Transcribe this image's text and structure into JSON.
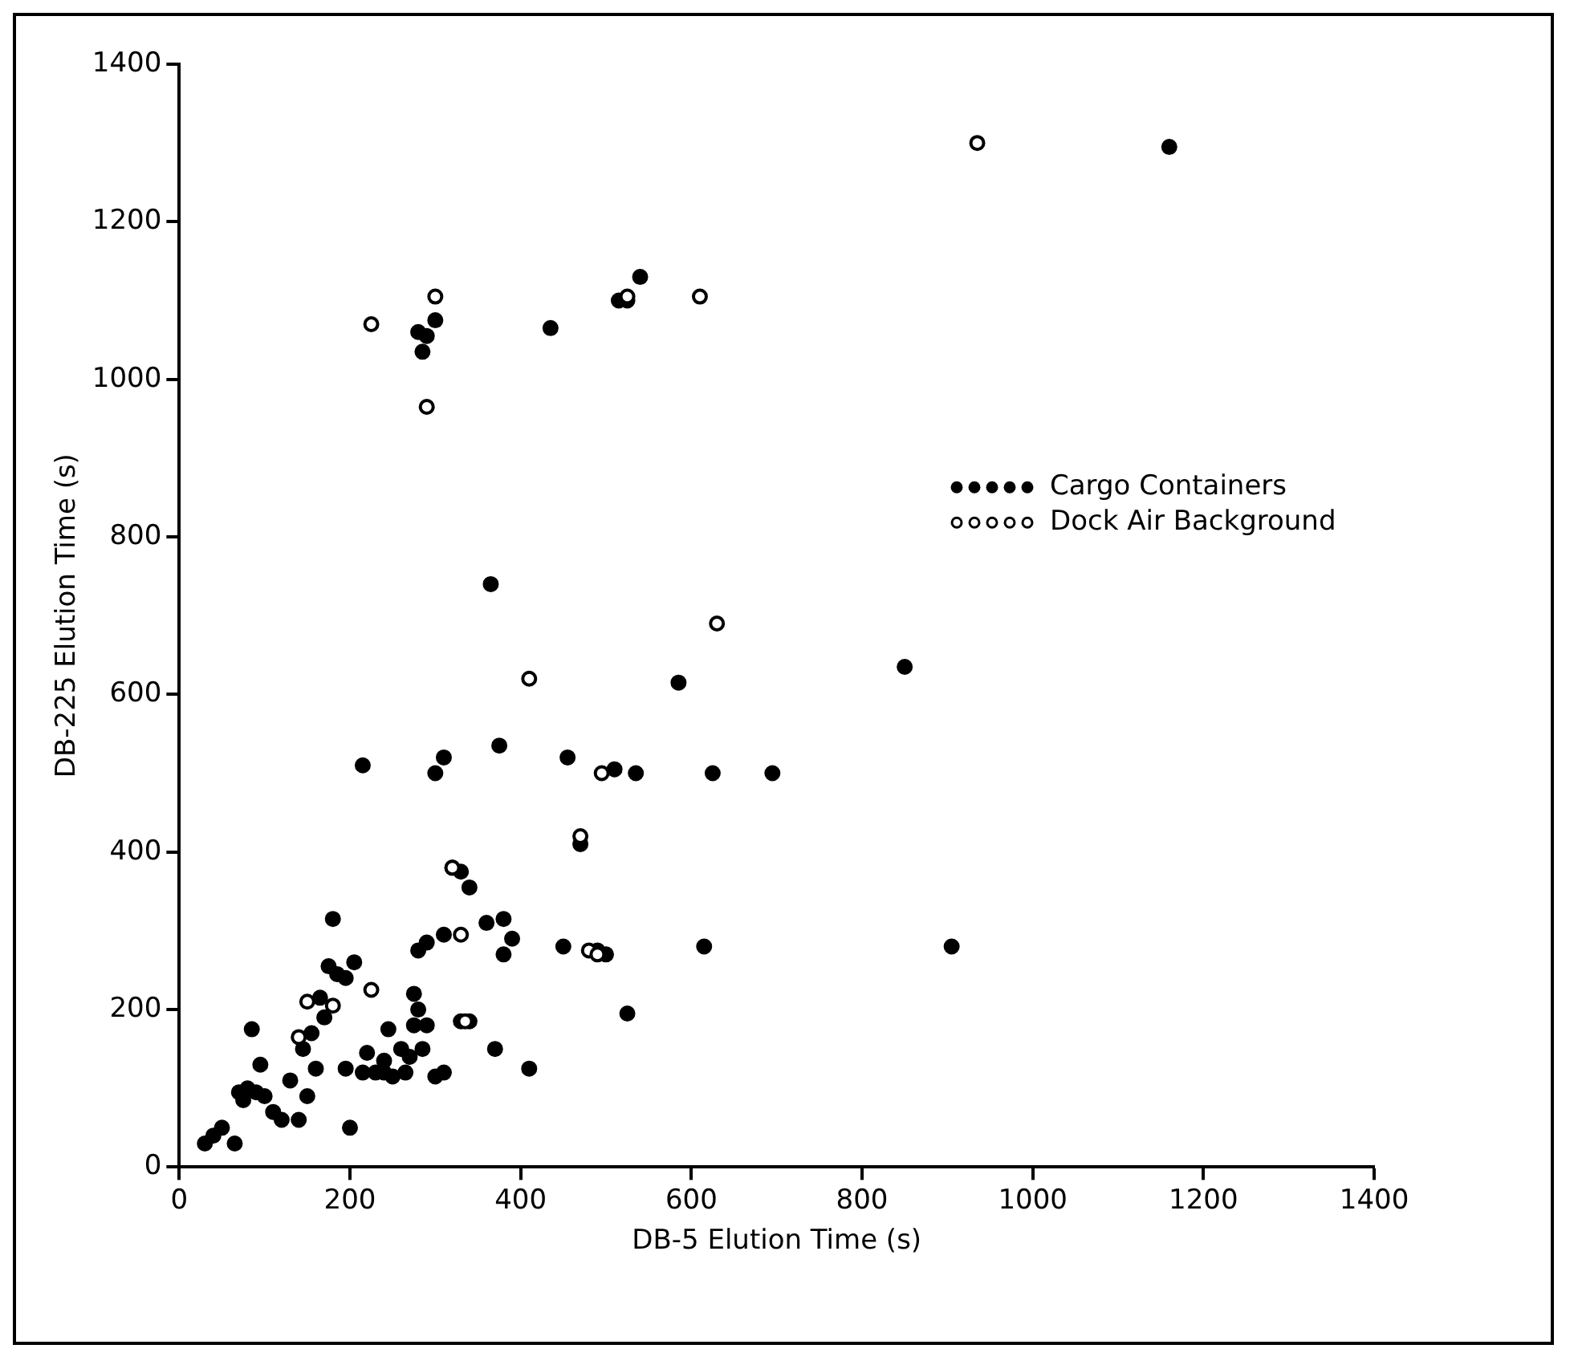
{
  "chart_data": {
    "type": "scatter",
    "xlabel": "DB-5 Elution Time (s)",
    "ylabel": "DB-225 Elution Time (s)",
    "xlim": [
      0,
      1400
    ],
    "xticks": [
      0,
      200,
      400,
      600,
      800,
      1000,
      1200,
      1400
    ],
    "ylim": [
      0,
      1400
    ],
    "yticks": [
      0,
      200,
      400,
      600,
      800,
      1000,
      1200,
      1400
    ],
    "grid": false,
    "legend": "right",
    "marker": "circle",
    "series": [
      {
        "name": "Cargo Containers",
        "color": "#000000",
        "x": [
          280,
          290,
          285,
          300,
          435,
          515,
          525,
          540,
          1160,
          365,
          850,
          585,
          375,
          215,
          310,
          300,
          455,
          510,
          535,
          625,
          695,
          615,
          905,
          450,
          490,
          500,
          525,
          470,
          410,
          360,
          380,
          390,
          380,
          340,
          330,
          320,
          290,
          280,
          310,
          370,
          330,
          340,
          310,
          300,
          275,
          280,
          275,
          285,
          260,
          245,
          240,
          250,
          230,
          215,
          220,
          205,
          180,
          175,
          185,
          195,
          165,
          170,
          155,
          145,
          140,
          130,
          150,
          120,
          100,
          95,
          85,
          80,
          75,
          65,
          50,
          40,
          30,
          110,
          90,
          70,
          200,
          195,
          160,
          240,
          265,
          270,
          290
        ],
        "values": [
          1060,
          1055,
          1035,
          1075,
          1065,
          1100,
          1100,
          1130,
          1295,
          740,
          635,
          615,
          535,
          510,
          520,
          500,
          520,
          505,
          500,
          500,
          500,
          280,
          280,
          280,
          275,
          270,
          195,
          410,
          125,
          310,
          315,
          290,
          270,
          355,
          375,
          380,
          285,
          275,
          295,
          150,
          185,
          185,
          120,
          115,
          220,
          200,
          180,
          150,
          150,
          175,
          135,
          115,
          120,
          120,
          145,
          260,
          315,
          255,
          245,
          240,
          215,
          190,
          170,
          150,
          60,
          110,
          90,
          60,
          90,
          130,
          175,
          100,
          85,
          30,
          50,
          40,
          30,
          70,
          95,
          95,
          50,
          125,
          125,
          120,
          120,
          140,
          180
        ]
      },
      {
        "name": "Dock Air Background",
        "color": "#000000",
        "x": [
          225,
          300,
          290,
          525,
          610,
          935,
          410,
          630,
          495,
          470,
          320,
          330,
          335,
          225,
          180,
          150,
          140,
          480,
          490
        ],
        "values": [
          1070,
          1105,
          965,
          1105,
          1105,
          1300,
          620,
          690,
          500,
          420,
          380,
          295,
          185,
          225,
          205,
          210,
          165,
          275,
          270
        ]
      }
    ]
  }
}
